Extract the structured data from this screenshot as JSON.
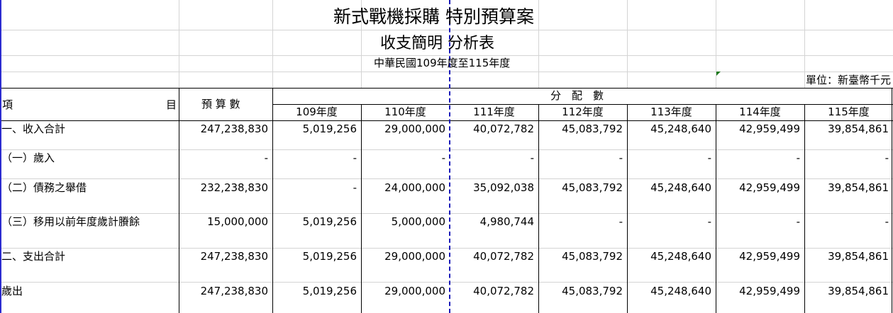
{
  "title_line1": "新式戰機採購 特別預算案",
  "title_line2": "收支簡明 分析表",
  "subtitle": "中華民國109年度至115年度",
  "unit": "單位：新臺幣千元",
  "header": {
    "item_left": "項",
    "item_right": "目",
    "budget": "預 算 數",
    "allocation": "分　配　數",
    "years": [
      "109年度",
      "110年度",
      "111年度",
      "112年度",
      "113年度",
      "114年度",
      "115年度"
    ]
  },
  "rows": [
    {
      "label": "一、收入合計",
      "budget": "247,238,830",
      "years": [
        "5,019,256",
        "29,000,000",
        "40,072,782",
        "45,083,792",
        "45,248,640",
        "42,959,499",
        "39,854,861"
      ]
    },
    {
      "label": "（一）歲入",
      "budget": "-",
      "years": [
        "-",
        "-",
        "-",
        "-",
        "-",
        "-",
        "-"
      ]
    },
    {
      "label": "（二）債務之舉借",
      "budget": "232,238,830",
      "years": [
        "-",
        "24,000,000",
        "35,092,038",
        "45,083,792",
        "45,248,640",
        "42,959,499",
        "39,854,861"
      ]
    },
    {
      "label": "（三）移用以前年度歲計賸餘",
      "budget": "15,000,000",
      "years": [
        "5,019,256",
        "5,000,000",
        "4,980,744",
        "-",
        "-",
        "-",
        "-"
      ]
    },
    {
      "label": "二、支出合計",
      "budget": "247,238,830",
      "years": [
        "5,019,256",
        "29,000,000",
        "40,072,782",
        "45,083,792",
        "45,248,640",
        "42,959,499",
        "39,854,861"
      ]
    },
    {
      "label": "歲出",
      "budget": "247,238,830",
      "years": [
        "5,019,256",
        "29,000,000",
        "40,072,782",
        "45,083,792",
        "45,248,640",
        "42,959,499",
        "39,854,861"
      ]
    }
  ]
}
